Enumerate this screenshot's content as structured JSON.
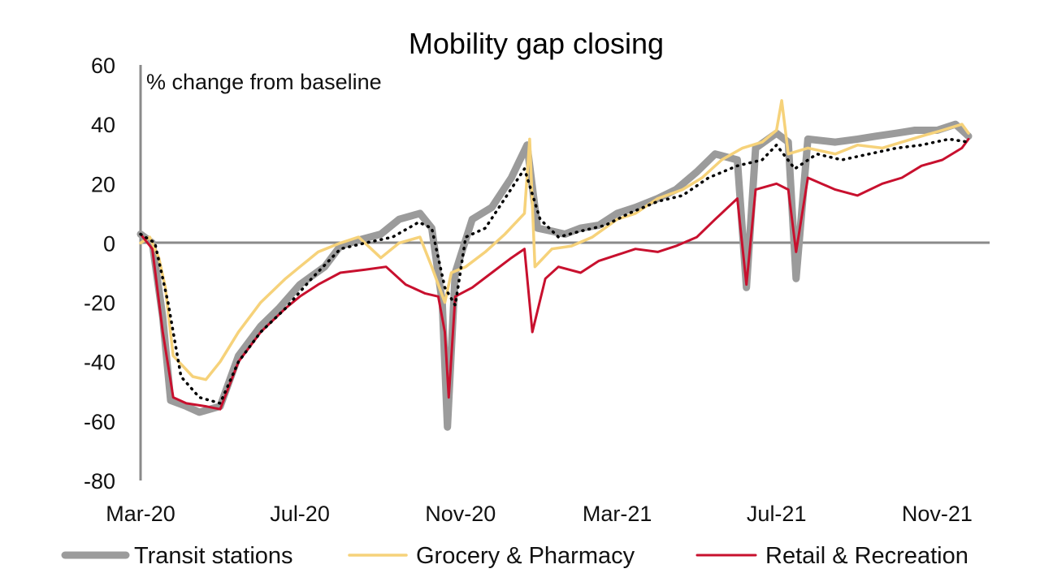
{
  "chart_data": {
    "type": "line",
    "title": "Mobility gap closing",
    "ylabel": "% change from baseline",
    "xlabel": "",
    "ylim": [
      -80,
      60
    ],
    "yticks": [
      60,
      40,
      20,
      0,
      -20,
      -40,
      -60,
      -80
    ],
    "xlim": [
      "2020-03-01",
      "2021-11-30"
    ],
    "xticks": [
      {
        "label": "Mar-20",
        "date": "2020-03-01"
      },
      {
        "label": "Jul-20",
        "date": "2020-07-01"
      },
      {
        "label": "Nov-20",
        "date": "2020-11-01"
      },
      {
        "label": "Mar-21",
        "date": "2021-03-01"
      },
      {
        "label": "Jul-21",
        "date": "2021-07-01"
      },
      {
        "label": "Nov-21",
        "date": "2021-11-01"
      }
    ],
    "legend_position": "bottom",
    "series": [
      {
        "name": "Transit stations",
        "color": "#9b9b9b",
        "points": [
          [
            "2020-03-01",
            3
          ],
          [
            "2020-03-10",
            0
          ],
          [
            "2020-03-18",
            -25
          ],
          [
            "2020-03-24",
            -53
          ],
          [
            "2020-04-05",
            -55
          ],
          [
            "2020-04-15",
            -57
          ],
          [
            "2020-05-01",
            -55
          ],
          [
            "2020-05-15",
            -38
          ],
          [
            "2020-06-01",
            -28
          ],
          [
            "2020-06-15",
            -22
          ],
          [
            "2020-07-01",
            -14
          ],
          [
            "2020-07-20",
            -8
          ],
          [
            "2020-08-01",
            -1
          ],
          [
            "2020-08-15",
            1
          ],
          [
            "2020-09-01",
            3
          ],
          [
            "2020-09-15",
            8
          ],
          [
            "2020-10-01",
            10
          ],
          [
            "2020-10-10",
            5
          ],
          [
            "2020-10-18",
            -20
          ],
          [
            "2020-10-22",
            -62
          ],
          [
            "2020-10-28",
            -10
          ],
          [
            "2020-11-10",
            8
          ],
          [
            "2020-11-25",
            12
          ],
          [
            "2020-12-10",
            22
          ],
          [
            "2020-12-22",
            33
          ],
          [
            "2020-12-30",
            5
          ],
          [
            "2021-01-10",
            4
          ],
          [
            "2021-01-20",
            3
          ],
          [
            "2021-02-01",
            5
          ],
          [
            "2021-02-15",
            6
          ],
          [
            "2021-03-01",
            10
          ],
          [
            "2021-03-15",
            12
          ],
          [
            "2021-04-01",
            15
          ],
          [
            "2021-04-15",
            18
          ],
          [
            "2021-05-01",
            24
          ],
          [
            "2021-05-15",
            30
          ],
          [
            "2021-06-01",
            28
          ],
          [
            "2021-06-08",
            -15
          ],
          [
            "2021-06-15",
            32
          ],
          [
            "2021-07-01",
            37
          ],
          [
            "2021-07-10",
            34
          ],
          [
            "2021-07-16",
            -12
          ],
          [
            "2021-07-25",
            35
          ],
          [
            "2021-08-15",
            34
          ],
          [
            "2021-09-01",
            35
          ],
          [
            "2021-09-15",
            36
          ],
          [
            "2021-10-01",
            37
          ],
          [
            "2021-10-15",
            38
          ],
          [
            "2021-11-01",
            38
          ],
          [
            "2021-11-15",
            40
          ],
          [
            "2021-11-25",
            36
          ]
        ]
      },
      {
        "name": "Grocery & Pharmacy",
        "color": "#f6d27a",
        "points": [
          [
            "2020-03-01",
            0
          ],
          [
            "2020-03-08",
            2
          ],
          [
            "2020-03-15",
            -5
          ],
          [
            "2020-03-20",
            -15
          ],
          [
            "2020-03-26",
            -38
          ],
          [
            "2020-04-10",
            -45
          ],
          [
            "2020-04-20",
            -46
          ],
          [
            "2020-05-01",
            -40
          ],
          [
            "2020-05-15",
            -30
          ],
          [
            "2020-06-01",
            -20
          ],
          [
            "2020-06-20",
            -12
          ],
          [
            "2020-07-01",
            -8
          ],
          [
            "2020-07-15",
            -3
          ],
          [
            "2020-08-01",
            0
          ],
          [
            "2020-08-15",
            2
          ],
          [
            "2020-09-01",
            -5
          ],
          [
            "2020-09-15",
            0
          ],
          [
            "2020-10-01",
            2
          ],
          [
            "2020-10-10",
            -8
          ],
          [
            "2020-10-20",
            -20
          ],
          [
            "2020-10-25",
            -10
          ],
          [
            "2020-11-05",
            -8
          ],
          [
            "2020-11-20",
            -3
          ],
          [
            "2020-12-05",
            3
          ],
          [
            "2020-12-20",
            10
          ],
          [
            "2020-12-24",
            35
          ],
          [
            "2020-12-28",
            -8
          ],
          [
            "2021-01-10",
            -2
          ],
          [
            "2021-01-25",
            -1
          ],
          [
            "2021-02-10",
            2
          ],
          [
            "2021-03-01",
            8
          ],
          [
            "2021-03-15",
            10
          ],
          [
            "2021-04-01",
            15
          ],
          [
            "2021-04-20",
            18
          ],
          [
            "2021-05-05",
            22
          ],
          [
            "2021-05-20",
            28
          ],
          [
            "2021-06-05",
            32
          ],
          [
            "2021-06-20",
            34
          ],
          [
            "2021-07-01",
            38
          ],
          [
            "2021-07-05",
            48
          ],
          [
            "2021-07-10",
            30
          ],
          [
            "2021-07-25",
            32
          ],
          [
            "2021-08-15",
            30
          ],
          [
            "2021-09-01",
            33
          ],
          [
            "2021-09-20",
            32
          ],
          [
            "2021-10-05",
            34
          ],
          [
            "2021-10-20",
            36
          ],
          [
            "2021-11-05",
            38
          ],
          [
            "2021-11-20",
            40
          ],
          [
            "2021-11-25",
            37
          ]
        ]
      },
      {
        "name": "Retail & Recreation",
        "color": "#c8102e",
        "points": [
          [
            "2020-03-01",
            3
          ],
          [
            "2020-03-10",
            -2
          ],
          [
            "2020-03-18",
            -30
          ],
          [
            "2020-03-26",
            -52
          ],
          [
            "2020-04-05",
            -54
          ],
          [
            "2020-04-20",
            -55
          ],
          [
            "2020-05-01",
            -56
          ],
          [
            "2020-05-15",
            -40
          ],
          [
            "2020-06-01",
            -30
          ],
          [
            "2020-06-20",
            -22
          ],
          [
            "2020-07-01",
            -18
          ],
          [
            "2020-07-15",
            -14
          ],
          [
            "2020-08-01",
            -10
          ],
          [
            "2020-08-20",
            -9
          ],
          [
            "2020-09-05",
            -8
          ],
          [
            "2020-09-20",
            -14
          ],
          [
            "2020-10-05",
            -17
          ],
          [
            "2020-10-15",
            -18
          ],
          [
            "2020-10-20",
            -30
          ],
          [
            "2020-10-23",
            -52
          ],
          [
            "2020-10-28",
            -18
          ],
          [
            "2020-11-10",
            -15
          ],
          [
            "2020-11-25",
            -10
          ],
          [
            "2020-12-10",
            -5
          ],
          [
            "2020-12-20",
            -2
          ],
          [
            "2020-12-26",
            -30
          ],
          [
            "2021-01-05",
            -12
          ],
          [
            "2021-01-15",
            -8
          ],
          [
            "2021-02-01",
            -10
          ],
          [
            "2021-02-15",
            -6
          ],
          [
            "2021-03-01",
            -4
          ],
          [
            "2021-03-15",
            -2
          ],
          [
            "2021-04-01",
            -3
          ],
          [
            "2021-04-15",
            -1
          ],
          [
            "2021-05-01",
            2
          ],
          [
            "2021-05-15",
            8
          ],
          [
            "2021-06-01",
            15
          ],
          [
            "2021-06-08",
            -14
          ],
          [
            "2021-06-15",
            18
          ],
          [
            "2021-07-01",
            20
          ],
          [
            "2021-07-10",
            18
          ],
          [
            "2021-07-16",
            -3
          ],
          [
            "2021-07-25",
            22
          ],
          [
            "2021-08-15",
            18
          ],
          [
            "2021-09-01",
            16
          ],
          [
            "2021-09-20",
            20
          ],
          [
            "2021-10-05",
            22
          ],
          [
            "2021-10-20",
            26
          ],
          [
            "2021-11-05",
            28
          ],
          [
            "2021-11-20",
            32
          ],
          [
            "2021-11-25",
            35
          ]
        ]
      },
      {
        "name": "",
        "color": "#000000",
        "style": "dotted",
        "points": [
          [
            "2020-03-01",
            3
          ],
          [
            "2020-03-12",
            0
          ],
          [
            "2020-03-22",
            -20
          ],
          [
            "2020-04-01",
            -45
          ],
          [
            "2020-04-15",
            -52
          ],
          [
            "2020-05-01",
            -54
          ],
          [
            "2020-05-15",
            -40
          ],
          [
            "2020-06-01",
            -30
          ],
          [
            "2020-06-20",
            -22
          ],
          [
            "2020-07-10",
            -12
          ],
          [
            "2020-08-01",
            -2
          ],
          [
            "2020-08-20",
            0
          ],
          [
            "2020-09-10",
            2
          ],
          [
            "2020-09-30",
            7
          ],
          [
            "2020-10-10",
            5
          ],
          [
            "2020-10-20",
            -15
          ],
          [
            "2020-10-28",
            -21
          ],
          [
            "2020-11-05",
            2
          ],
          [
            "2020-11-20",
            5
          ],
          [
            "2020-12-05",
            15
          ],
          [
            "2020-12-20",
            25
          ],
          [
            "2021-01-01",
            8
          ],
          [
            "2021-01-15",
            2
          ],
          [
            "2021-02-01",
            4
          ],
          [
            "2021-02-20",
            6
          ],
          [
            "2021-03-10",
            10
          ],
          [
            "2021-04-01",
            14
          ],
          [
            "2021-04-20",
            16
          ],
          [
            "2021-05-10",
            22
          ],
          [
            "2021-06-01",
            26
          ],
          [
            "2021-06-20",
            28
          ],
          [
            "2021-07-01",
            33
          ],
          [
            "2021-07-15",
            25
          ],
          [
            "2021-08-01",
            30
          ],
          [
            "2021-08-20",
            28
          ],
          [
            "2021-09-10",
            30
          ],
          [
            "2021-10-01",
            32
          ],
          [
            "2021-10-20",
            33
          ],
          [
            "2021-11-10",
            35
          ],
          [
            "2021-11-25",
            34
          ]
        ]
      }
    ]
  }
}
